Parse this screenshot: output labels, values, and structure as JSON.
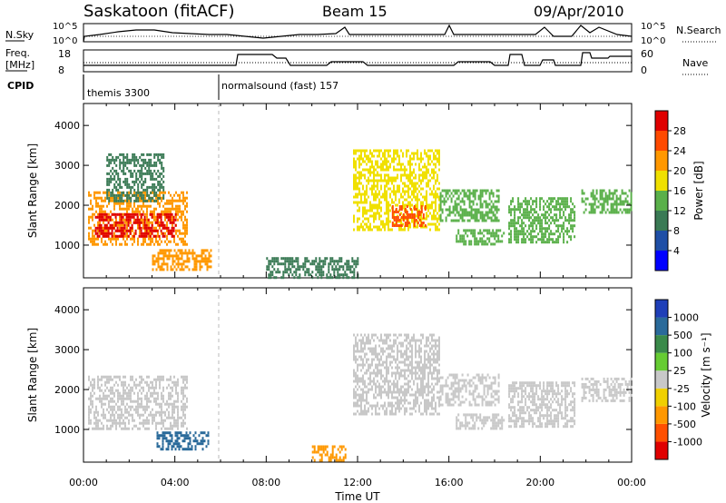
{
  "header": {
    "station": "Saskatoon (fitACF)",
    "beam": "Beam 15",
    "date": "09/Apr/2010"
  },
  "strip_labels": {
    "nsky": "N.Sky",
    "nsky_top": "10^5",
    "nsky_bottom": "10^0",
    "nsearch": "N.Search",
    "nsearch_top": "10^5",
    "nsearch_bottom": "10^0",
    "freq_line1": "Freq.",
    "freq_line2": "[MHz]",
    "freq_top": "18",
    "freq_bottom": "8",
    "nave": "Nave",
    "nave_top": "60",
    "nave_bottom": "0",
    "cpid": "CPID"
  },
  "cpid_segments": [
    {
      "start_ut": 0.0,
      "label": "themis 3300"
    },
    {
      "start_ut": 6.0,
      "label": "normalsound (fast) 157"
    }
  ],
  "colorbars": {
    "power": {
      "label": "Power [dB]",
      "ticks": [
        "28",
        "24",
        "20",
        "16",
        "12",
        "8",
        "4"
      ],
      "colors": [
        "#0000ff",
        "#1f4fa6",
        "#3a7a55",
        "#5ab04a",
        "#f0e000",
        "#ff9800",
        "#ff4a00",
        "#e00000"
      ]
    },
    "velocity": {
      "label": "Velocity [m s⁻¹]",
      "ticks": [
        "1000",
        "500",
        "100",
        "25",
        "-25",
        "-100",
        "-500",
        "-1000"
      ],
      "colors": [
        "#1f3fb8",
        "#2a6a9a",
        "#3a8a4a",
        "#66cc33",
        "#c8c8c8",
        "#f0d000",
        "#ff9800",
        "#ff5000",
        "#e00000"
      ]
    }
  },
  "chart_data": [
    {
      "type": "heatmap",
      "title": "Power",
      "ylabel": "Slant Range [km]",
      "xlabel": "Time UT",
      "x_ticks": [
        "00:00",
        "04:00",
        "08:00",
        "12:00",
        "16:00",
        "20:00",
        "00:00"
      ],
      "y_ticks": [
        "1000",
        "2000",
        "3000",
        "4000"
      ],
      "xlim": [
        0,
        24
      ],
      "ylim": [
        180,
        4550
      ],
      "regions": [
        {
          "t0": 0.2,
          "t1": 4.5,
          "r0": 1050,
          "r1": 2350,
          "level": 5
        },
        {
          "t0": 0.5,
          "t1": 4.0,
          "r0": 1200,
          "r1": 1800,
          "level": 7
        },
        {
          "t0": 1.0,
          "t1": 3.5,
          "r0": 2100,
          "r1": 3300,
          "level": 2
        },
        {
          "t0": 3.0,
          "t1": 5.6,
          "r0": 400,
          "r1": 900,
          "level": 5
        },
        {
          "t0": 8.0,
          "t1": 12.0,
          "r0": 180,
          "r1": 700,
          "level": 2
        },
        {
          "t0": 11.8,
          "t1": 15.6,
          "r0": 1400,
          "r1": 3400,
          "level": 4
        },
        {
          "t0": 13.5,
          "t1": 15.0,
          "r0": 1500,
          "r1": 2000,
          "level": 6
        },
        {
          "t0": 15.6,
          "t1": 18.2,
          "r0": 1600,
          "r1": 2400,
          "level": 3
        },
        {
          "t0": 16.3,
          "t1": 18.4,
          "r0": 1000,
          "r1": 1400,
          "level": 3
        },
        {
          "t0": 18.6,
          "t1": 21.5,
          "r0": 1100,
          "r1": 2200,
          "level": 3
        },
        {
          "t0": 21.8,
          "t1": 24.0,
          "r0": 1800,
          "r1": 2400,
          "level": 3
        }
      ],
      "power_legend_levels": [
        "4",
        "8",
        "12",
        "16",
        "20",
        "24",
        "28"
      ]
    },
    {
      "type": "heatmap",
      "title": "Velocity",
      "ylabel": "Slant Range [km]",
      "xlabel": "Time UT",
      "x_ticks": [
        "00:00",
        "04:00",
        "08:00",
        "12:00",
        "16:00",
        "20:00",
        "00:00"
      ],
      "y_ticks": [
        "1000",
        "2000",
        "3000",
        "4000"
      ],
      "xlim": [
        0,
        24
      ],
      "ylim": [
        180,
        4550
      ],
      "regions": [
        {
          "t0": 0.2,
          "t1": 4.5,
          "r0": 1050,
          "r1": 2350,
          "level": 4
        },
        {
          "t0": 3.2,
          "t1": 5.5,
          "r0": 500,
          "r1": 950,
          "level": 1
        },
        {
          "t0": 10.0,
          "t1": 11.5,
          "r0": 200,
          "r1": 600,
          "level": 6
        },
        {
          "t0": 11.8,
          "t1": 15.6,
          "r0": 1400,
          "r1": 3400,
          "level": 4
        },
        {
          "t0": 15.6,
          "t1": 18.2,
          "r0": 1600,
          "r1": 2400,
          "level": 4
        },
        {
          "t0": 16.3,
          "t1": 18.4,
          "r0": 1000,
          "r1": 1400,
          "level": 4
        },
        {
          "t0": 18.6,
          "t1": 21.5,
          "r0": 1100,
          "r1": 2200,
          "level": 4
        },
        {
          "t0": 21.8,
          "t1": 24.0,
          "r0": 1700,
          "r1": 2300,
          "level": 4
        }
      ]
    }
  ],
  "footer": {
    "time_label": "Time UT"
  }
}
